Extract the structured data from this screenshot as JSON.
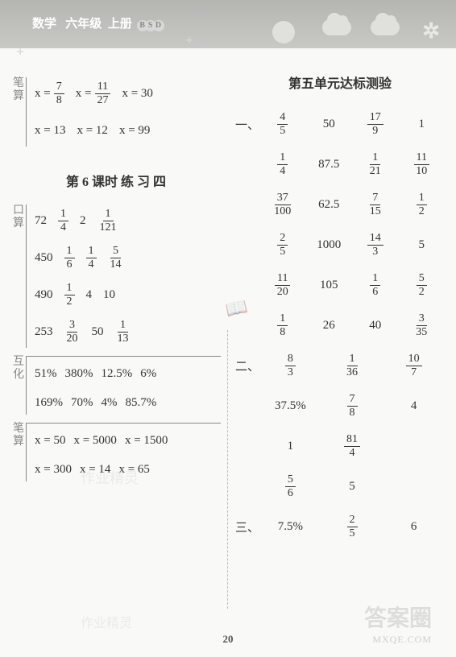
{
  "header": {
    "subject": "数学",
    "grade": "六年级",
    "volume": "上册",
    "badge": [
      "B",
      "S",
      "D"
    ]
  },
  "page_number": "20",
  "left": {
    "bisuan_label": "笔算",
    "bisuan_rows": [
      [
        {
          "t": "eq",
          "v": "x =",
          "f": [
            "7",
            "8"
          ]
        },
        {
          "t": "eq",
          "v": "x =",
          "f": [
            "11",
            "27"
          ]
        },
        {
          "t": "txt",
          "v": "x = 30"
        }
      ],
      [
        {
          "t": "txt",
          "v": "x = 13"
        },
        {
          "t": "txt",
          "v": "x = 12"
        },
        {
          "t": "txt",
          "v": "x = 99"
        }
      ]
    ],
    "lesson_heading": "第 6 课时  练 习  四",
    "ksuan_label": "口算",
    "ksuan_rows": [
      [
        {
          "t": "txt",
          "v": "72"
        },
        {
          "t": "f",
          "f": [
            "1",
            "4"
          ]
        },
        {
          "t": "txt",
          "v": "2"
        },
        {
          "t": "f",
          "f": [
            "1",
            "121"
          ]
        }
      ],
      [
        {
          "t": "txt",
          "v": "450"
        },
        {
          "t": "f",
          "f": [
            "1",
            "6"
          ]
        },
        {
          "t": "f",
          "f": [
            "1",
            "4"
          ]
        },
        {
          "t": "f",
          "f": [
            "5",
            "14"
          ]
        }
      ],
      [
        {
          "t": "txt",
          "v": "490"
        },
        {
          "t": "f",
          "f": [
            "1",
            "2"
          ]
        },
        {
          "t": "txt",
          "v": "4"
        },
        {
          "t": "txt",
          "v": "10"
        }
      ],
      [
        {
          "t": "txt",
          "v": "253"
        },
        {
          "t": "f",
          "f": [
            "3",
            "20"
          ]
        },
        {
          "t": "txt",
          "v": "50"
        },
        {
          "t": "f",
          "f": [
            "1",
            "13"
          ]
        }
      ]
    ],
    "huhua_label": "互化",
    "huhua_rows": [
      [
        {
          "t": "txt",
          "v": "51%"
        },
        {
          "t": "txt",
          "v": "380%"
        },
        {
          "t": "txt",
          "v": "12.5%"
        },
        {
          "t": "txt",
          "v": "6%"
        }
      ],
      [
        {
          "t": "txt",
          "v": "169%"
        },
        {
          "t": "txt",
          "v": "70%"
        },
        {
          "t": "txt",
          "v": "4%"
        },
        {
          "t": "txt",
          "v": "85.7%"
        }
      ]
    ],
    "bisuan2_label": "笔算",
    "bisuan2_rows": [
      [
        {
          "t": "txt",
          "v": "x = 50"
        },
        {
          "t": "txt",
          "v": "x = 5000"
        },
        {
          "t": "txt",
          "v": "x = 1500"
        }
      ],
      [
        {
          "t": "txt",
          "v": "x = 300"
        },
        {
          "t": "txt",
          "v": "x = 14"
        },
        {
          "t": "txt",
          "v": "x = 65"
        }
      ]
    ]
  },
  "right": {
    "unit_heading": "第五单元达标测验",
    "sec1_lead": "一、",
    "sec1_rows": [
      [
        {
          "t": "f",
          "f": [
            "4",
            "5"
          ]
        },
        {
          "t": "txt",
          "v": "50"
        },
        {
          "t": "f",
          "f": [
            "17",
            "9"
          ]
        },
        {
          "t": "txt",
          "v": "1"
        }
      ],
      [
        {
          "t": "f",
          "f": [
            "1",
            "4"
          ]
        },
        {
          "t": "txt",
          "v": "87.5"
        },
        {
          "t": "f",
          "f": [
            "1",
            "21"
          ]
        },
        {
          "t": "f",
          "f": [
            "11",
            "10"
          ]
        }
      ],
      [
        {
          "t": "f",
          "f": [
            "37",
            "100"
          ]
        },
        {
          "t": "txt",
          "v": "62.5"
        },
        {
          "t": "f",
          "f": [
            "7",
            "15"
          ]
        },
        {
          "t": "f",
          "f": [
            "1",
            "2"
          ]
        }
      ],
      [
        {
          "t": "f",
          "f": [
            "2",
            "5"
          ]
        },
        {
          "t": "txt",
          "v": "1000"
        },
        {
          "t": "f",
          "f": [
            "14",
            "3"
          ]
        },
        {
          "t": "txt",
          "v": "5"
        }
      ],
      [
        {
          "t": "f",
          "f": [
            "11",
            "20"
          ]
        },
        {
          "t": "txt",
          "v": "105"
        },
        {
          "t": "f",
          "f": [
            "1",
            "6"
          ]
        },
        {
          "t": "f",
          "f": [
            "5",
            "2"
          ]
        }
      ],
      [
        {
          "t": "f",
          "f": [
            "1",
            "8"
          ]
        },
        {
          "t": "txt",
          "v": "26"
        },
        {
          "t": "txt",
          "v": "40"
        },
        {
          "t": "f",
          "f": [
            "3",
            "35"
          ]
        }
      ]
    ],
    "sec2_lead": "二、",
    "sec2_rows": [
      [
        {
          "t": "f",
          "f": [
            "8",
            "3"
          ]
        },
        {
          "t": "f",
          "f": [
            "1",
            "36"
          ]
        },
        {
          "t": "f",
          "f": [
            "10",
            "7"
          ]
        }
      ],
      [
        {
          "t": "txt",
          "v": "37.5%"
        },
        {
          "t": "f",
          "f": [
            "7",
            "8"
          ]
        },
        {
          "t": "txt",
          "v": "4"
        }
      ],
      [
        {
          "t": "txt",
          "v": "1"
        },
        {
          "t": "f",
          "f": [
            "81",
            "4"
          ]
        },
        {
          "t": "txt",
          "v": ""
        }
      ],
      [
        {
          "t": "f",
          "f": [
            "5",
            "6"
          ]
        },
        {
          "t": "txt",
          "v": "5"
        },
        {
          "t": "txt",
          "v": ""
        }
      ]
    ],
    "sec3_lead": "三、",
    "sec3_rows": [
      [
        {
          "t": "txt",
          "v": "7.5%"
        },
        {
          "t": "f",
          "f": [
            "2",
            "5"
          ]
        },
        {
          "t": "txt",
          "v": "6"
        }
      ]
    ]
  },
  "watermarks": {
    "w1": "作业精灵",
    "w2": "作业精灵",
    "wr": "答案圈",
    "wr2": "MXQE.COM",
    "book": "📖"
  }
}
